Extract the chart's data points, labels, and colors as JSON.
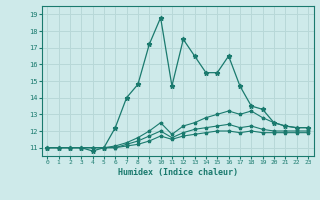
{
  "xlabel": "Humidex (Indice chaleur)",
  "x_values": [
    0,
    1,
    2,
    3,
    4,
    5,
    6,
    7,
    8,
    9,
    10,
    11,
    12,
    13,
    14,
    15,
    16,
    17,
    18,
    19,
    20,
    21,
    22,
    23
  ],
  "line1_y": [
    11,
    11,
    11,
    11,
    10.8,
    11,
    12.2,
    14.0,
    14.8,
    17.2,
    18.8,
    14.7,
    17.5,
    16.5,
    15.5,
    15.5,
    16.5,
    14.7,
    13.5,
    13.3,
    12.5,
    12.3,
    12.2,
    12.2
  ],
  "line2_y": [
    11,
    11,
    11,
    11,
    11,
    11,
    11.1,
    11.3,
    11.6,
    12.0,
    12.5,
    11.8,
    12.3,
    12.5,
    12.8,
    13.0,
    13.2,
    13.0,
    13.2,
    12.8,
    12.5,
    12.3,
    12.2,
    12.2
  ],
  "line3_y": [
    11,
    11,
    11,
    11,
    11,
    11,
    11.0,
    11.2,
    11.4,
    11.7,
    12.0,
    11.6,
    11.9,
    12.1,
    12.2,
    12.3,
    12.4,
    12.2,
    12.3,
    12.1,
    12.0,
    12.0,
    12.0,
    12.0
  ],
  "line4_y": [
    11,
    11,
    11,
    11,
    11,
    11,
    11.0,
    11.1,
    11.2,
    11.4,
    11.7,
    11.5,
    11.7,
    11.8,
    11.9,
    12.0,
    12.0,
    11.9,
    12.0,
    11.9,
    11.9,
    11.9,
    11.9,
    11.9
  ],
  "line_color": "#1a7a6e",
  "bg_color": "#ceeaea",
  "grid_color": "#b8d8d8",
  "ylim": [
    10.5,
    19.5
  ],
  "xlim": [
    -0.5,
    23.5
  ],
  "yticks": [
    11,
    12,
    13,
    14,
    15,
    16,
    17,
    18,
    19
  ],
  "xticks": [
    0,
    1,
    2,
    3,
    4,
    5,
    6,
    7,
    8,
    9,
    10,
    11,
    12,
    13,
    14,
    15,
    16,
    17,
    18,
    19,
    20,
    21,
    22,
    23
  ]
}
